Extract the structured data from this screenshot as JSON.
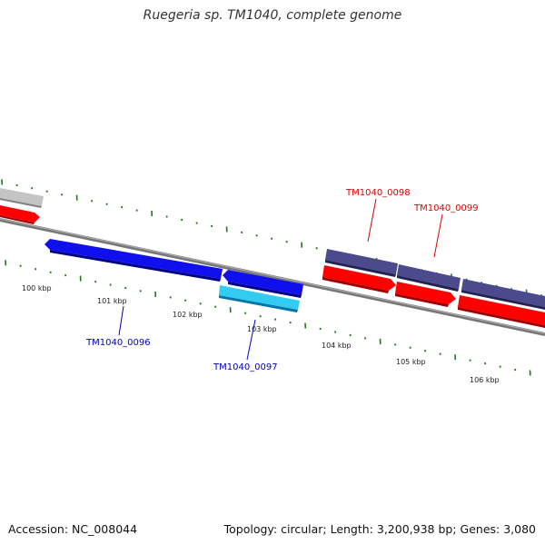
{
  "title": "Ruegeria sp. TM1040, complete genome",
  "footer": {
    "accession": "Accession: NC_008044",
    "summary": "Topology: circular; Length: 3,200,938 bp; Genes: 3,080"
  },
  "ruler_labels": [
    "100 kbp",
    "101 kbp",
    "102 kbp",
    "103 kbp",
    "104 kbp",
    "105 kbp",
    "106 kbp"
  ],
  "gene_labels": [
    {
      "id": "TM1040_0096",
      "color": "#0000bb"
    },
    {
      "id": "TM1040_0097",
      "color": "#0000bb"
    },
    {
      "id": "TM1040_0098",
      "color": "#dd0000"
    },
    {
      "id": "TM1040_0099",
      "color": "#dd0000"
    }
  ],
  "colors": {
    "backbone": "#808080",
    "tick": "#1a7a1a",
    "cds_forward_dark": "#4b4a8c",
    "cds_red": "#ff0000",
    "cds_blue": "#0000ee",
    "cds_cyan": "#22ccee",
    "gene_grey": "#c0c0c0"
  }
}
